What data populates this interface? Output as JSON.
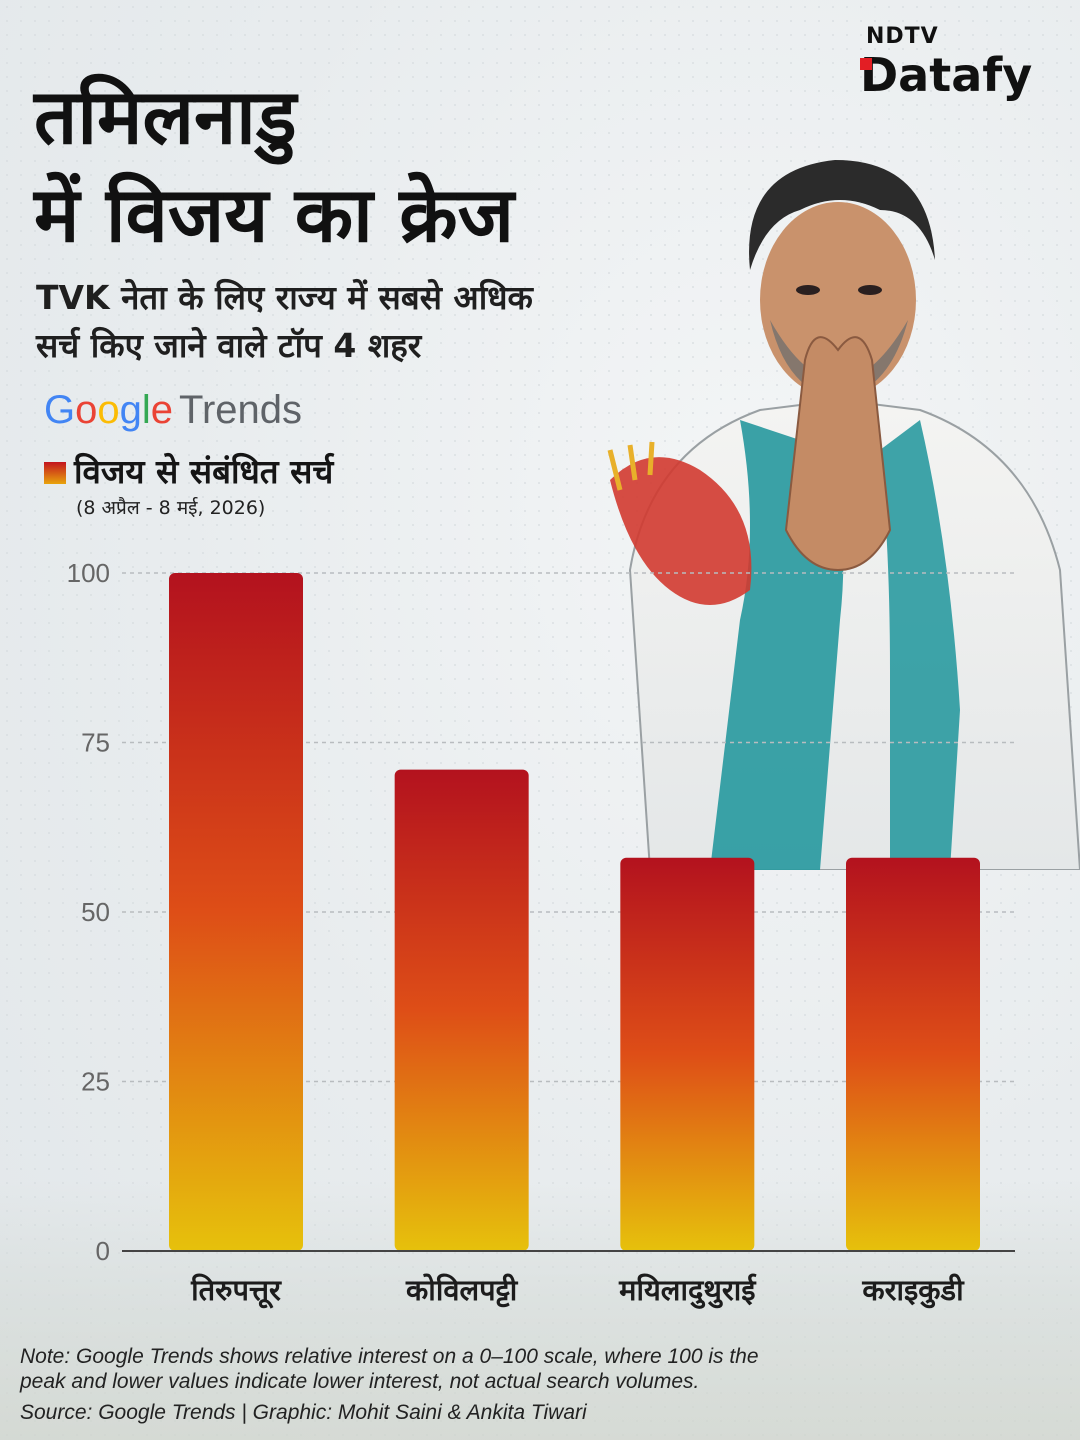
{
  "header": {
    "title_line1": "तमिलनाडु",
    "title_line2": "में विजय का क्रेज",
    "subtitle_line1": "TVK नेता के लिए राज्य में सबसे अधिक",
    "subtitle_line2": "सर्च किए जाने वाले टॉप 4 शहर"
  },
  "brand": {
    "top": "NDTV",
    "main": "Datafy",
    "accent_color": "#e31e24"
  },
  "google_trends": {
    "google": "Google",
    "trends": "Trends"
  },
  "legend": {
    "label": "विजय से संबंधित सर्च",
    "date_range": "(8 अप्रैल - 8 मई, 2026)"
  },
  "chart_data": {
    "type": "bar",
    "categories": [
      "तिरुपत्तूर",
      "कोविलपट्टी",
      "मयिलादुथुराई",
      "कराइकुडी"
    ],
    "values": [
      100,
      71,
      58,
      58
    ],
    "ylim": [
      0,
      100
    ],
    "yticks": [
      0,
      25,
      50,
      75,
      100
    ],
    "grid": true,
    "colors": {
      "top": "#b3121e",
      "mid": "#de4e17",
      "bottom": "#e6c10c"
    }
  },
  "footer": {
    "note_line1": "Note: Google Trends shows relative interest on a 0–100 scale, where 100 is the",
    "note_line2": "peak and lower values indicate lower interest, not actual search volumes.",
    "source": "Source: Google Trends | Graphic: Mohit Saini & Ankita Tiwari"
  }
}
